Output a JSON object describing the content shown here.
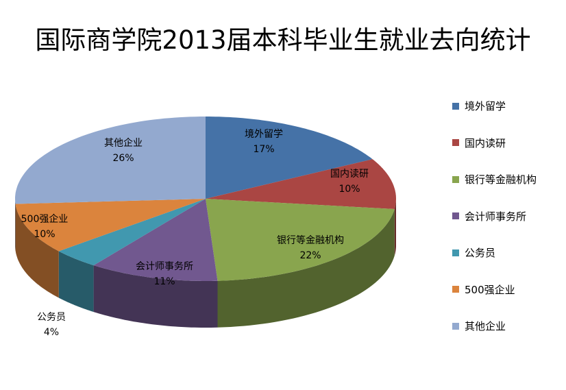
{
  "chart_data": {
    "type": "pie",
    "title": "国际商学院2013届本科毕业生就业去向统计",
    "categories": [
      "境外留学",
      "国内读研",
      "银行等金融机构",
      "会计师事务所",
      "公务员",
      "500强企业",
      "其他企业"
    ],
    "values": [
      17,
      10,
      22,
      11,
      4,
      10,
      26
    ],
    "labels": [
      "17%",
      "10%",
      "22%",
      "11%",
      "4%",
      "10%",
      "26%"
    ],
    "colors": [
      "#4572A7",
      "#AA4643",
      "#89A54E",
      "#71588F",
      "#4198AF",
      "#DB843D",
      "#93A9CF"
    ],
    "legend_position": "right",
    "style": "3d"
  }
}
